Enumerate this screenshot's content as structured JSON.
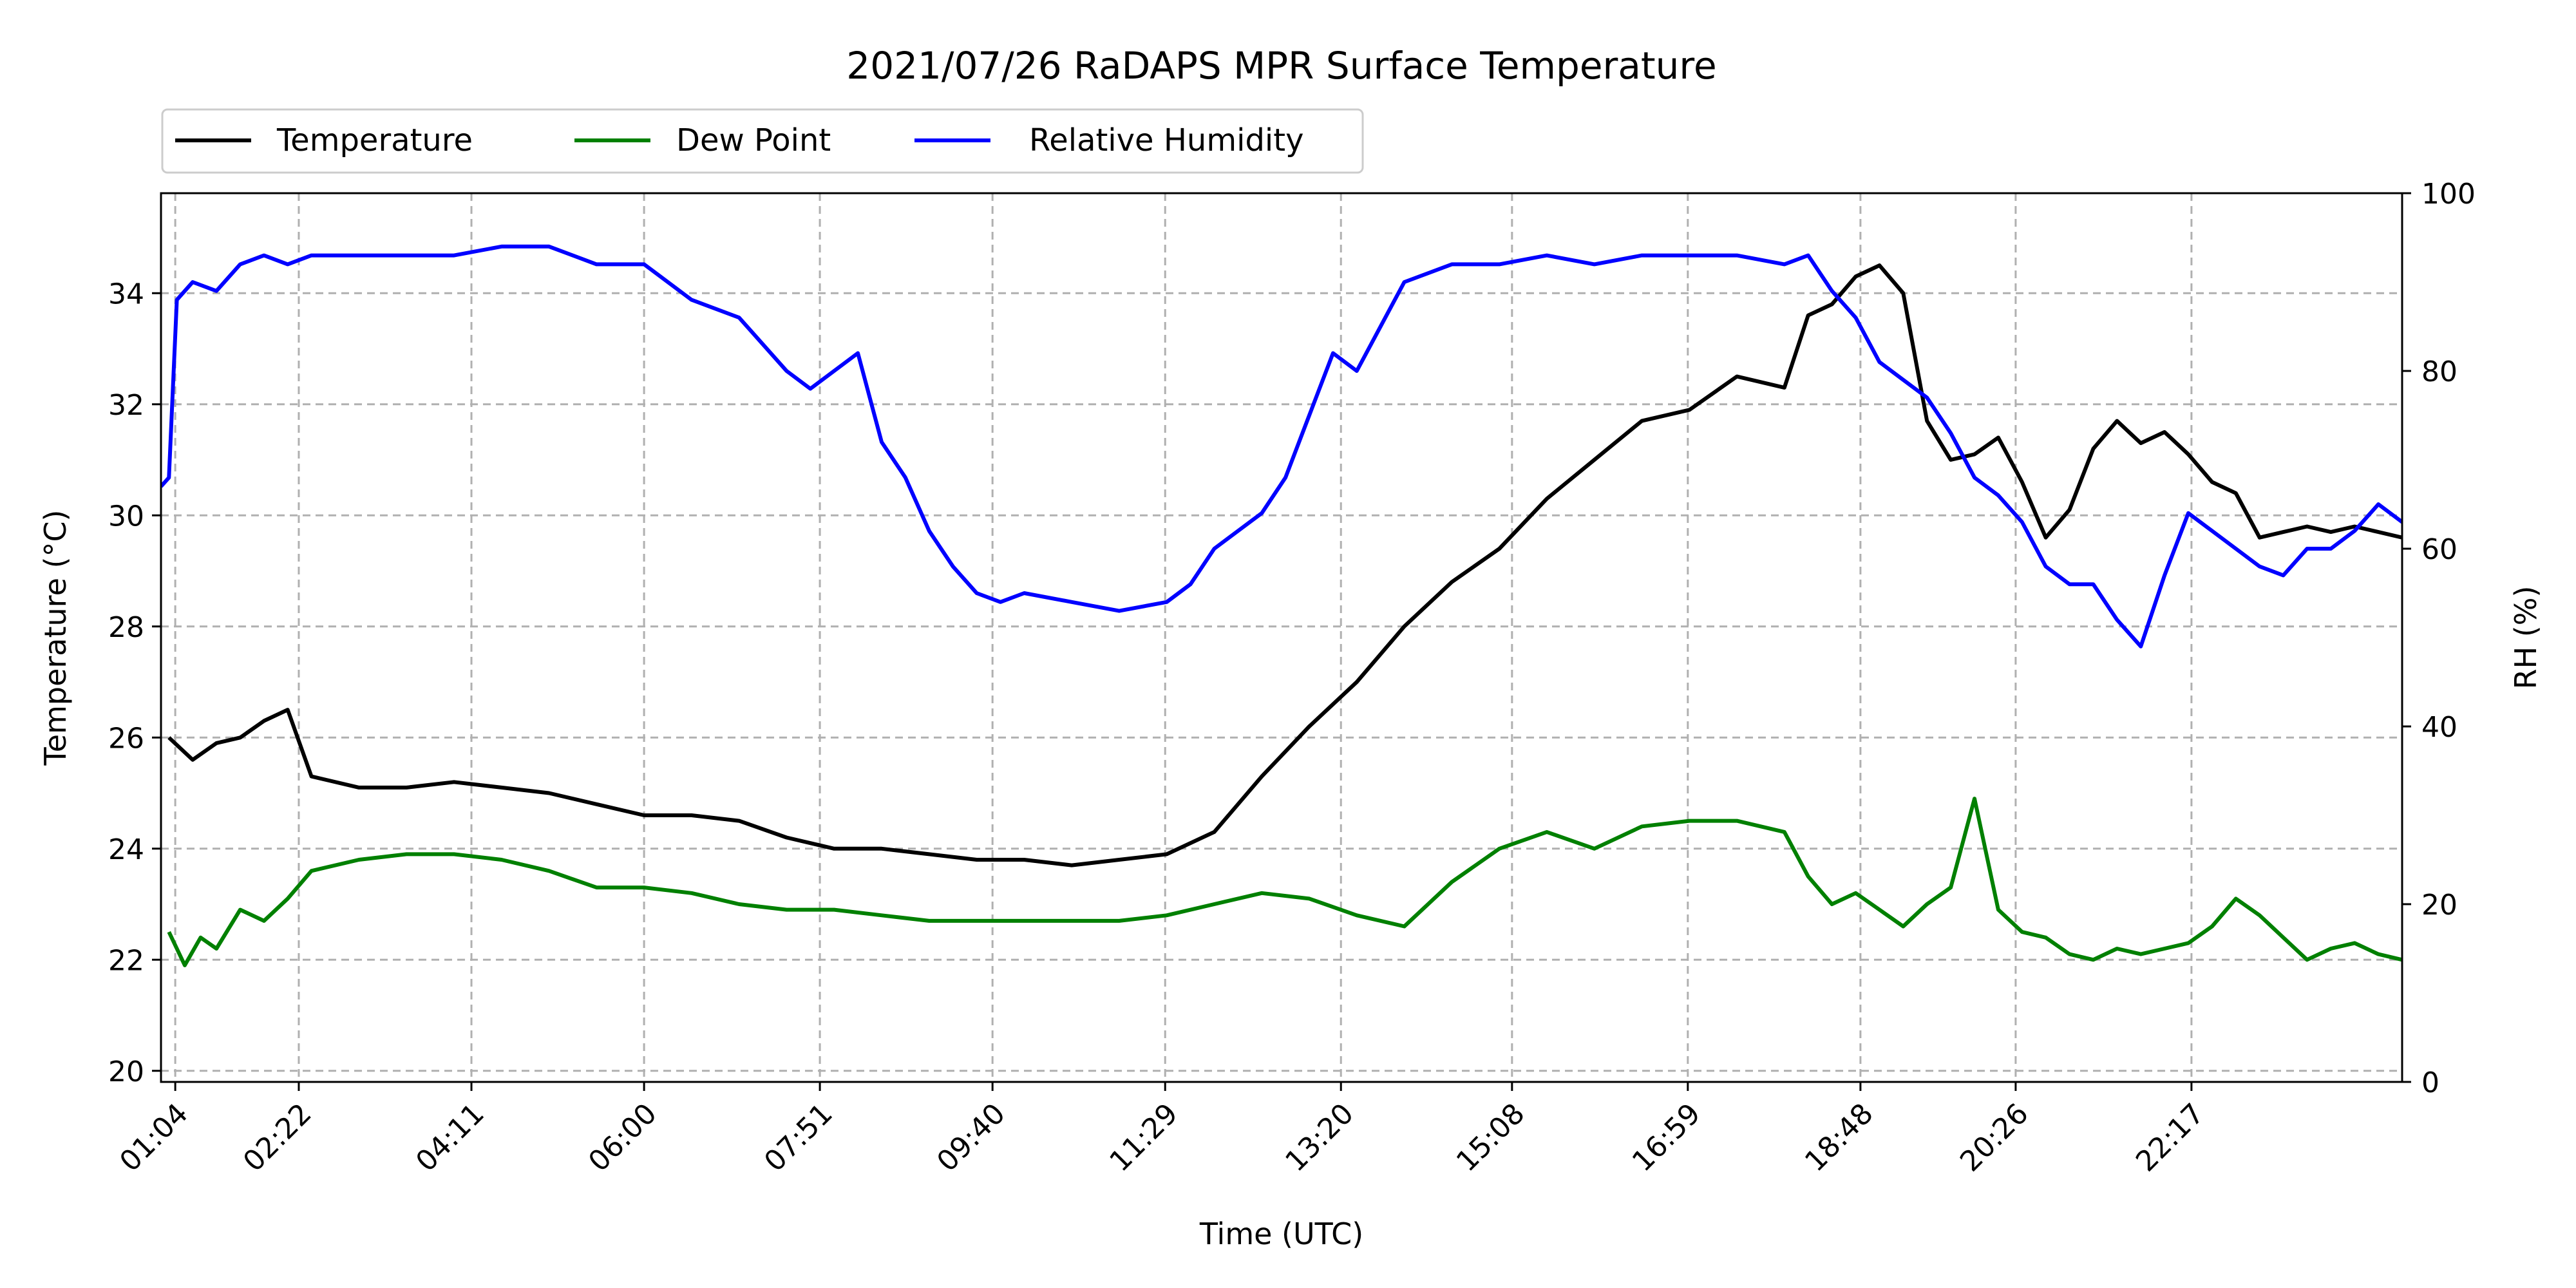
{
  "chart_data": {
    "type": "line",
    "title": "2021/07/26 RaDAPS MPR Surface Temperature",
    "xlabel": "Time (UTC)",
    "ylabel_left": "Temperature ($^\\circ$C)",
    "ylabel_left_display": "Temperature (°C)",
    "ylabel_right": "RH (%)",
    "x_unit": "hours UTC",
    "xlim": [
      "00:55",
      "24:30"
    ],
    "x_ticks": [
      "01:04",
      "02:22",
      "04:11",
      "06:00",
      "07:51",
      "09:40",
      "11:29",
      "13:20",
      "15:08",
      "16:59",
      "18:48",
      "20:26",
      "22:17"
    ],
    "ylim_left": [
      19.8,
      35.8
    ],
    "y_ticks_left": [
      20,
      22,
      24,
      26,
      28,
      30,
      32,
      34
    ],
    "ylim_right": [
      0,
      100
    ],
    "y_ticks_right": [
      0,
      20,
      40,
      60,
      80,
      100
    ],
    "grid": true,
    "legend_position": "top-left, above plot",
    "series": [
      {
        "name": "Temperature",
        "axis": "left",
        "color": "#000000",
        "x": [
          "01:00",
          "01:15",
          "01:30",
          "01:45",
          "02:00",
          "02:15",
          "02:30",
          "03:00",
          "03:30",
          "04:00",
          "04:30",
          "05:00",
          "05:30",
          "06:00",
          "06:30",
          "07:00",
          "07:30",
          "08:00",
          "08:30",
          "09:00",
          "09:30",
          "10:00",
          "10:30",
          "11:00",
          "11:30",
          "12:00",
          "12:30",
          "13:00",
          "13:30",
          "14:00",
          "14:30",
          "15:00",
          "15:30",
          "16:00",
          "16:30",
          "17:00",
          "17:30",
          "18:00",
          "18:15",
          "18:30",
          "18:45",
          "19:00",
          "19:15",
          "19:30",
          "19:45",
          "20:00",
          "20:15",
          "20:30",
          "20:45",
          "21:00",
          "21:15",
          "21:30",
          "21:45",
          "22:00",
          "22:15",
          "22:30",
          "22:45",
          "23:00",
          "23:15",
          "23:30",
          "23:45",
          "24:00",
          "24:15",
          "24:30"
        ],
        "y": [
          26.0,
          25.6,
          25.9,
          26.0,
          26.3,
          26.5,
          25.3,
          25.1,
          25.1,
          25.2,
          25.1,
          25.0,
          24.8,
          24.6,
          24.6,
          24.5,
          24.2,
          24.0,
          24.0,
          23.9,
          23.8,
          23.8,
          23.7,
          23.8,
          23.9,
          24.3,
          25.3,
          26.2,
          27.0,
          28.0,
          28.8,
          29.4,
          30.3,
          31.0,
          31.7,
          31.9,
          32.5,
          32.3,
          33.6,
          33.8,
          34.3,
          34.5,
          34.0,
          31.7,
          31.0,
          31.1,
          31.4,
          30.6,
          29.6,
          30.1,
          31.2,
          31.7,
          31.3,
          31.5,
          31.1,
          30.6,
          30.4,
          29.6,
          29.7,
          29.8,
          29.7,
          29.8,
          29.7,
          29.6
        ]
      },
      {
        "name": "Dew Point",
        "axis": "left",
        "color": "#008000",
        "x": [
          "01:00",
          "01:10",
          "01:20",
          "01:30",
          "01:45",
          "02:00",
          "02:15",
          "02:30",
          "03:00",
          "03:30",
          "04:00",
          "04:30",
          "05:00",
          "05:30",
          "06:00",
          "06:30",
          "07:00",
          "07:30",
          "08:00",
          "08:30",
          "09:00",
          "09:30",
          "10:00",
          "10:30",
          "11:00",
          "11:30",
          "12:00",
          "12:30",
          "13:00",
          "13:30",
          "14:00",
          "14:30",
          "15:00",
          "15:30",
          "16:00",
          "16:30",
          "17:00",
          "17:30",
          "18:00",
          "18:15",
          "18:30",
          "18:45",
          "19:00",
          "19:15",
          "19:30",
          "19:45",
          "20:00",
          "20:15",
          "20:30",
          "20:45",
          "21:00",
          "21:15",
          "21:30",
          "21:45",
          "22:00",
          "22:15",
          "22:30",
          "22:45",
          "23:00",
          "23:15",
          "23:30",
          "23:45",
          "24:00",
          "24:15",
          "24:30"
        ],
        "y": [
          22.5,
          21.9,
          22.4,
          22.2,
          22.9,
          22.7,
          23.1,
          23.6,
          23.8,
          23.9,
          23.9,
          23.8,
          23.6,
          23.3,
          23.3,
          23.2,
          23.0,
          22.9,
          22.9,
          22.8,
          22.7,
          22.7,
          22.7,
          22.7,
          22.7,
          22.8,
          23.0,
          23.2,
          23.1,
          22.8,
          22.6,
          23.4,
          24.0,
          24.3,
          24.0,
          24.4,
          24.5,
          24.5,
          24.3,
          23.5,
          23.0,
          23.2,
          22.9,
          22.6,
          23.0,
          23.3,
          24.9,
          22.9,
          22.5,
          22.4,
          22.1,
          22.0,
          22.2,
          22.1,
          22.2,
          22.3,
          22.6,
          23.1,
          22.8,
          22.4,
          22.0,
          22.2,
          22.3,
          22.1,
          22.0
        ]
      },
      {
        "name": "Relative Humidity",
        "axis": "right",
        "color": "#0000ff",
        "x": [
          "00:55",
          "01:00",
          "01:05",
          "01:15",
          "01:30",
          "01:45",
          "02:00",
          "02:15",
          "02:30",
          "03:00",
          "03:30",
          "04:00",
          "04:30",
          "05:00",
          "05:30",
          "06:00",
          "06:30",
          "07:00",
          "07:30",
          "07:45",
          "08:00",
          "08:15",
          "08:30",
          "08:45",
          "09:00",
          "09:15",
          "09:30",
          "09:45",
          "10:00",
          "10:30",
          "11:00",
          "11:30",
          "11:45",
          "12:00",
          "12:15",
          "12:30",
          "12:45",
          "13:00",
          "13:15",
          "13:30",
          "14:00",
          "14:30",
          "15:00",
          "15:30",
          "16:00",
          "16:30",
          "17:00",
          "17:30",
          "18:00",
          "18:15",
          "18:30",
          "18:45",
          "19:00",
          "19:15",
          "19:30",
          "19:45",
          "20:00",
          "20:15",
          "20:30",
          "20:45",
          "21:00",
          "21:15",
          "21:30",
          "21:45",
          "22:00",
          "22:15",
          "22:30",
          "22:45",
          "23:00",
          "23:15",
          "23:30",
          "23:45",
          "24:00",
          "24:15",
          "24:30"
        ],
        "y": [
          67,
          68,
          88,
          90,
          89,
          92,
          93,
          92,
          93,
          93,
          93,
          93,
          94,
          94,
          92,
          92,
          88,
          86,
          80,
          78,
          80,
          82,
          72,
          68,
          62,
          58,
          55,
          54,
          55,
          54,
          53,
          54,
          56,
          60,
          62,
          64,
          68,
          75,
          82,
          80,
          90,
          92,
          92,
          93,
          92,
          93,
          93,
          93,
          92,
          93,
          89,
          86,
          81,
          79,
          77,
          73,
          68,
          66,
          63,
          58,
          56,
          56,
          52,
          49,
          57,
          64,
          62,
          60,
          58,
          57,
          60,
          60,
          62,
          65,
          63
        ]
      }
    ]
  }
}
